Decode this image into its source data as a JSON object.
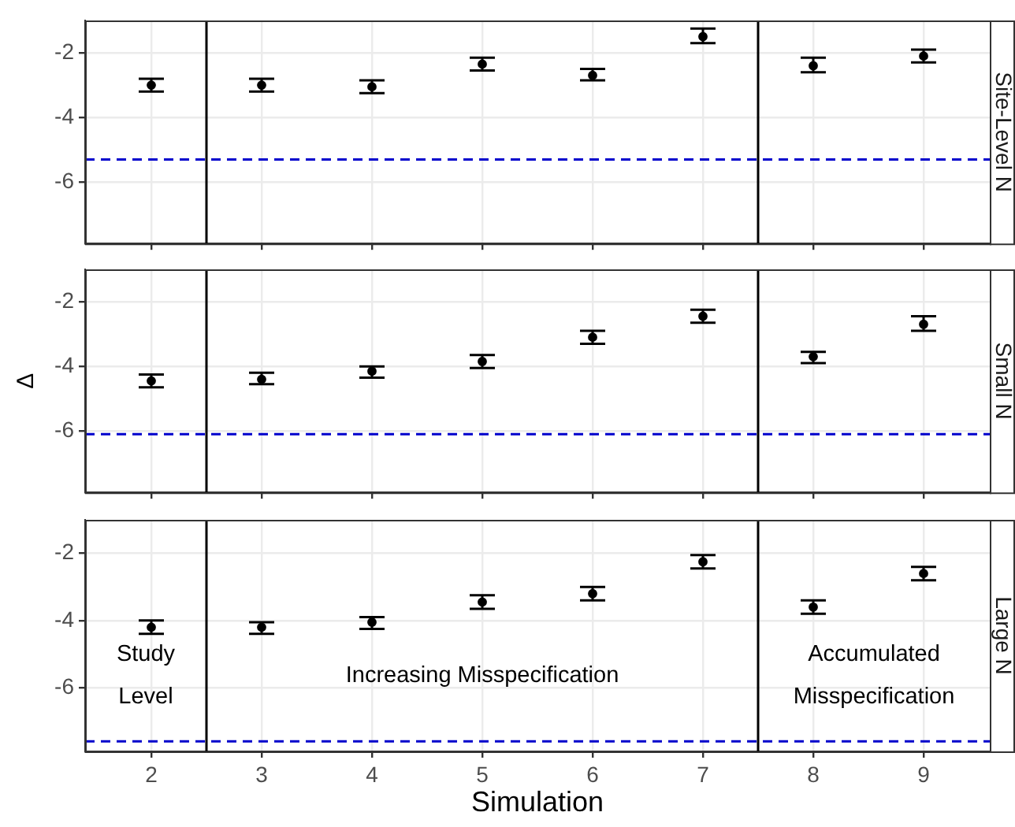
{
  "chart_data": [
    {
      "type": "scatter",
      "title": "Site-Level N",
      "x": [
        2,
        3,
        4,
        5,
        6,
        7,
        8,
        9
      ],
      "xlim": [
        1.4,
        9.6
      ],
      "xticks": [
        2,
        3,
        4,
        5,
        6,
        7,
        8,
        9
      ],
      "ylim": [
        -7.9,
        -1
      ],
      "yticks": [
        -2,
        -4,
        -6
      ],
      "tick_labels": "y",
      "grid": true,
      "legend": false,
      "color": "#000000",
      "values": [
        -3.0,
        -3.0,
        -3.05,
        -2.35,
        -2.7,
        -1.5,
        -2.4,
        -2.1
      ],
      "errors": [
        [
          -3.2,
          -2.8
        ],
        [
          -3.2,
          -2.8
        ],
        [
          -3.25,
          -2.85
        ],
        [
          -2.55,
          -2.15
        ],
        [
          -2.85,
          -2.5
        ],
        [
          -1.7,
          -1.25
        ],
        [
          -2.6,
          -2.15
        ],
        [
          -2.3,
          -1.9
        ]
      ],
      "ref_lines": [
        {
          "axis": "y",
          "value": -5.3,
          "color": "#0000cc",
          "line_style": "dashed"
        },
        {
          "axis": "x",
          "value": 2.5,
          "color": "#000000",
          "line_style": "solid"
        },
        {
          "axis": "x",
          "value": 7.5,
          "color": "#000000",
          "line_style": "solid"
        }
      ]
    },
    {
      "type": "scatter",
      "title": "Small N",
      "ylabel": "Δ",
      "x": [
        2,
        3,
        4,
        5,
        6,
        7,
        8,
        9
      ],
      "xlim": [
        1.4,
        9.6
      ],
      "xticks": [
        2,
        3,
        4,
        5,
        6,
        7,
        8,
        9
      ],
      "ylim": [
        -7.9,
        -1
      ],
      "yticks": [
        -2,
        -4,
        -6
      ],
      "tick_labels": "y",
      "grid": true,
      "legend": false,
      "color": "#000000",
      "values": [
        -4.45,
        -4.4,
        -4.15,
        -3.85,
        -3.1,
        -2.45,
        -3.7,
        -2.7
      ],
      "errors": [
        [
          -4.65,
          -4.25
        ],
        [
          -4.55,
          -4.2
        ],
        [
          -4.35,
          -4.0
        ],
        [
          -4.05,
          -3.65
        ],
        [
          -3.3,
          -2.9
        ],
        [
          -2.65,
          -2.25
        ],
        [
          -3.9,
          -3.55
        ],
        [
          -2.9,
          -2.45
        ]
      ],
      "ref_lines": [
        {
          "axis": "y",
          "value": -6.1,
          "color": "#0000cc",
          "line_style": "dashed"
        },
        {
          "axis": "x",
          "value": 2.5,
          "color": "#000000",
          "line_style": "solid"
        },
        {
          "axis": "x",
          "value": 7.5,
          "color": "#000000",
          "line_style": "solid"
        }
      ]
    },
    {
      "type": "scatter",
      "title": "Large N",
      "xlabel": "Simulation",
      "x": [
        2,
        3,
        4,
        5,
        6,
        7,
        8,
        9
      ],
      "xlim": [
        1.4,
        9.6
      ],
      "xticks": [
        2,
        3,
        4,
        5,
        6,
        7,
        8,
        9
      ],
      "ylim": [
        -7.9,
        -1
      ],
      "yticks": [
        -2,
        -4,
        -6
      ],
      "grid": true,
      "legend": false,
      "color": "#000000",
      "values": [
        -4.2,
        -4.2,
        -4.05,
        -3.45,
        -3.2,
        -2.25,
        -3.6,
        -2.6
      ],
      "errors": [
        [
          -4.4,
          -4.0
        ],
        [
          -4.4,
          -4.05
        ],
        [
          -4.25,
          -3.9
        ],
        [
          -3.65,
          -3.25
        ],
        [
          -3.4,
          -3.0
        ],
        [
          -2.45,
          -2.05
        ],
        [
          -3.8,
          -3.4
        ],
        [
          -2.8,
          -2.4
        ]
      ],
      "ref_lines": [
        {
          "axis": "y",
          "value": -7.6,
          "color": "#0000cc",
          "line_style": "dashed"
        },
        {
          "axis": "x",
          "value": 2.5,
          "color": "#000000",
          "line_style": "solid"
        },
        {
          "axis": "x",
          "value": 7.5,
          "color": "#000000",
          "line_style": "solid"
        }
      ],
      "annotations": [
        "Study\nLevel",
        "Increasing Misspecification",
        "Accumulated\nMisspecification"
      ]
    }
  ]
}
